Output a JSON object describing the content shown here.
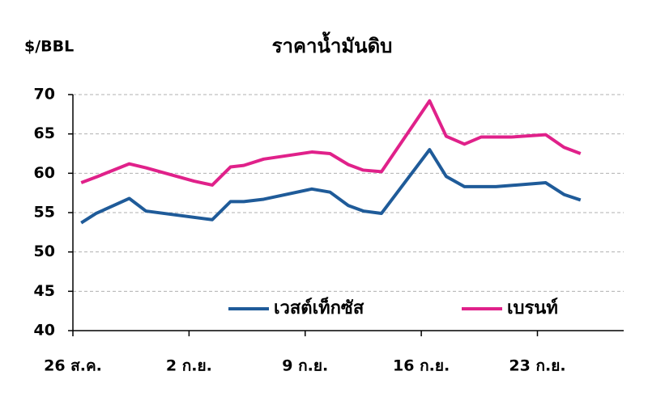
{
  "chart_data": {
    "type": "line",
    "title": "ราคาน้ำมันดิบ",
    "y_label": "$/BBL",
    "xlim": [
      0,
      33.2
    ],
    "xticks": [
      {
        "value": 0,
        "label": "26 ส.ค."
      },
      {
        "value": 7,
        "label": "2 ก.ย."
      },
      {
        "value": 14,
        "label": "9 ก.ย."
      },
      {
        "value": 21,
        "label": "16 ก.ย."
      },
      {
        "value": 28,
        "label": "23 ก.ย."
      }
    ],
    "ylim": [
      40,
      70
    ],
    "yticks": [
      40,
      45,
      50,
      55,
      60,
      65,
      70
    ],
    "grid": true,
    "legend": "lower right",
    "series": [
      {
        "name": "เวสต์เท็กซัส",
        "color": "#1f5b99",
        "x": [
          0.5,
          1.4,
          3.4,
          4.4,
          8.4,
          9.5,
          10.3,
          11.5,
          14.4,
          15.5,
          16.6,
          17.5,
          18.6,
          21.5,
          22.5,
          23.6,
          25.5,
          28.5,
          29.6,
          30.6
        ],
        "values": [
          53.7,
          54.9,
          56.8,
          55.2,
          54.1,
          56.4,
          56.4,
          56.7,
          58.0,
          57.6,
          55.9,
          55.2,
          54.9,
          63.0,
          59.6,
          58.3,
          58.3,
          58.8,
          57.3,
          56.6
        ]
      },
      {
        "name": "เบรนท์",
        "color": "#e0218a",
        "x": [
          0.5,
          1.5,
          3.4,
          4.4,
          7.3,
          8.4,
          9.5,
          10.3,
          11.5,
          14.4,
          15.5,
          16.6,
          17.5,
          18.6,
          21.5,
          22.5,
          23.6,
          24.6,
          26.4,
          28.5,
          29.6,
          30.6
        ],
        "values": [
          58.8,
          59.6,
          61.2,
          60.7,
          59.0,
          58.5,
          60.8,
          61.0,
          61.8,
          62.7,
          62.5,
          61.1,
          60.4,
          60.2,
          69.2,
          64.7,
          63.7,
          64.6,
          64.6,
          64.9,
          63.3,
          62.5
        ]
      }
    ]
  }
}
